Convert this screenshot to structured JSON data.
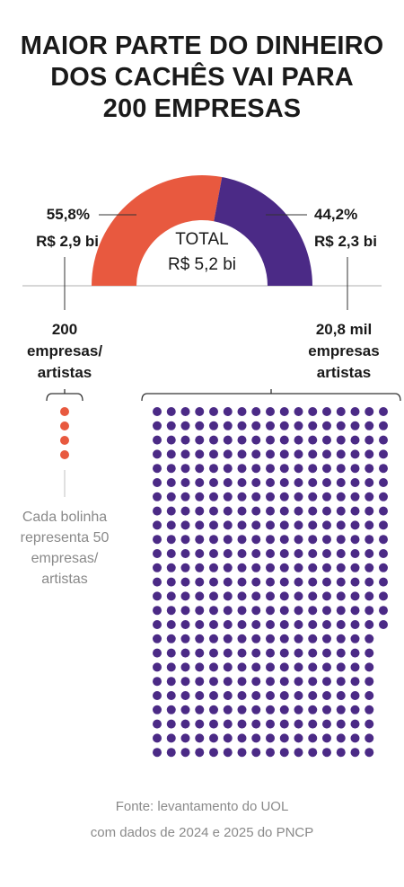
{
  "title_lines": [
    "MAIOR PARTE DO DINHEIRO",
    "DOS CACHÊS VAI PARA",
    "200 EMPRESAS"
  ],
  "colors": {
    "companies": "#e8593f",
    "artists": "#4b2a86",
    "text": "#1a1a1a",
    "muted": "#8a8a8a",
    "line": "#999999"
  },
  "chart_data": [
    {
      "type": "pie",
      "variant": "half-donut",
      "center_label": "TOTAL",
      "center_value": "R$ 5,2 bi",
      "slices": [
        {
          "label": "200 empresas/ artistas",
          "percent": 55.8,
          "percent_text": "55,8%",
          "value_text": "R$ 2,9 bi",
          "color": "#e8593f"
        },
        {
          "label": "20,8 mil empresas artistas",
          "percent": 44.2,
          "percent_text": "44,2%",
          "value_text": "R$ 2,3 bi",
          "color": "#4b2a86"
        }
      ]
    },
    {
      "type": "dot-matrix",
      "unit_note": "Cada bolinha representa 50 empresas/ artistas",
      "groups": [
        {
          "label_lines": [
            "200",
            "empresas/",
            "artistas"
          ],
          "count": 200,
          "dots": 4,
          "color": "#e8593f"
        },
        {
          "label_lines": [
            "20,8 mil",
            "empresas",
            "artistas"
          ],
          "count": 20800,
          "dots": 416,
          "color": "#4b2a86"
        }
      ]
    }
  ],
  "note_lines": [
    "Cada bolinha",
    "representa 50",
    "empresas/",
    "artistas"
  ],
  "source_lines": [
    "Fonte:  levantamento do UOL",
    "com dados de 2024 e 2025 do PNCP"
  ]
}
